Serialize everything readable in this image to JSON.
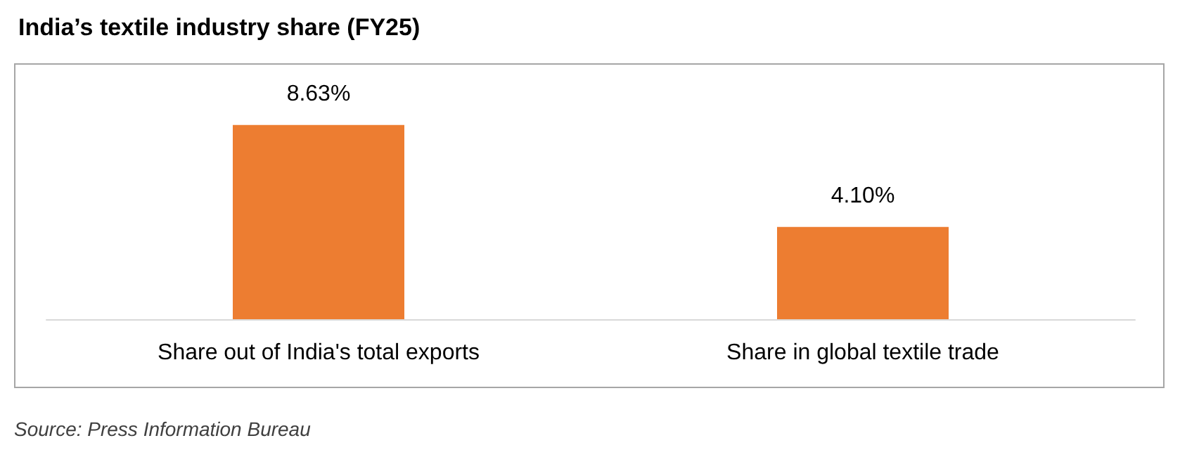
{
  "chart_data": {
    "type": "bar",
    "title": "India’s textile industry share (FY25)",
    "categories": [
      "Share out of India's total exports",
      "Share in global textile trade"
    ],
    "values": [
      8.63,
      4.1
    ],
    "value_labels": [
      "8.63%",
      "4.10%"
    ],
    "color": "#ed7d31",
    "annotations": [
      "Source: Press Information Bureau"
    ]
  }
}
